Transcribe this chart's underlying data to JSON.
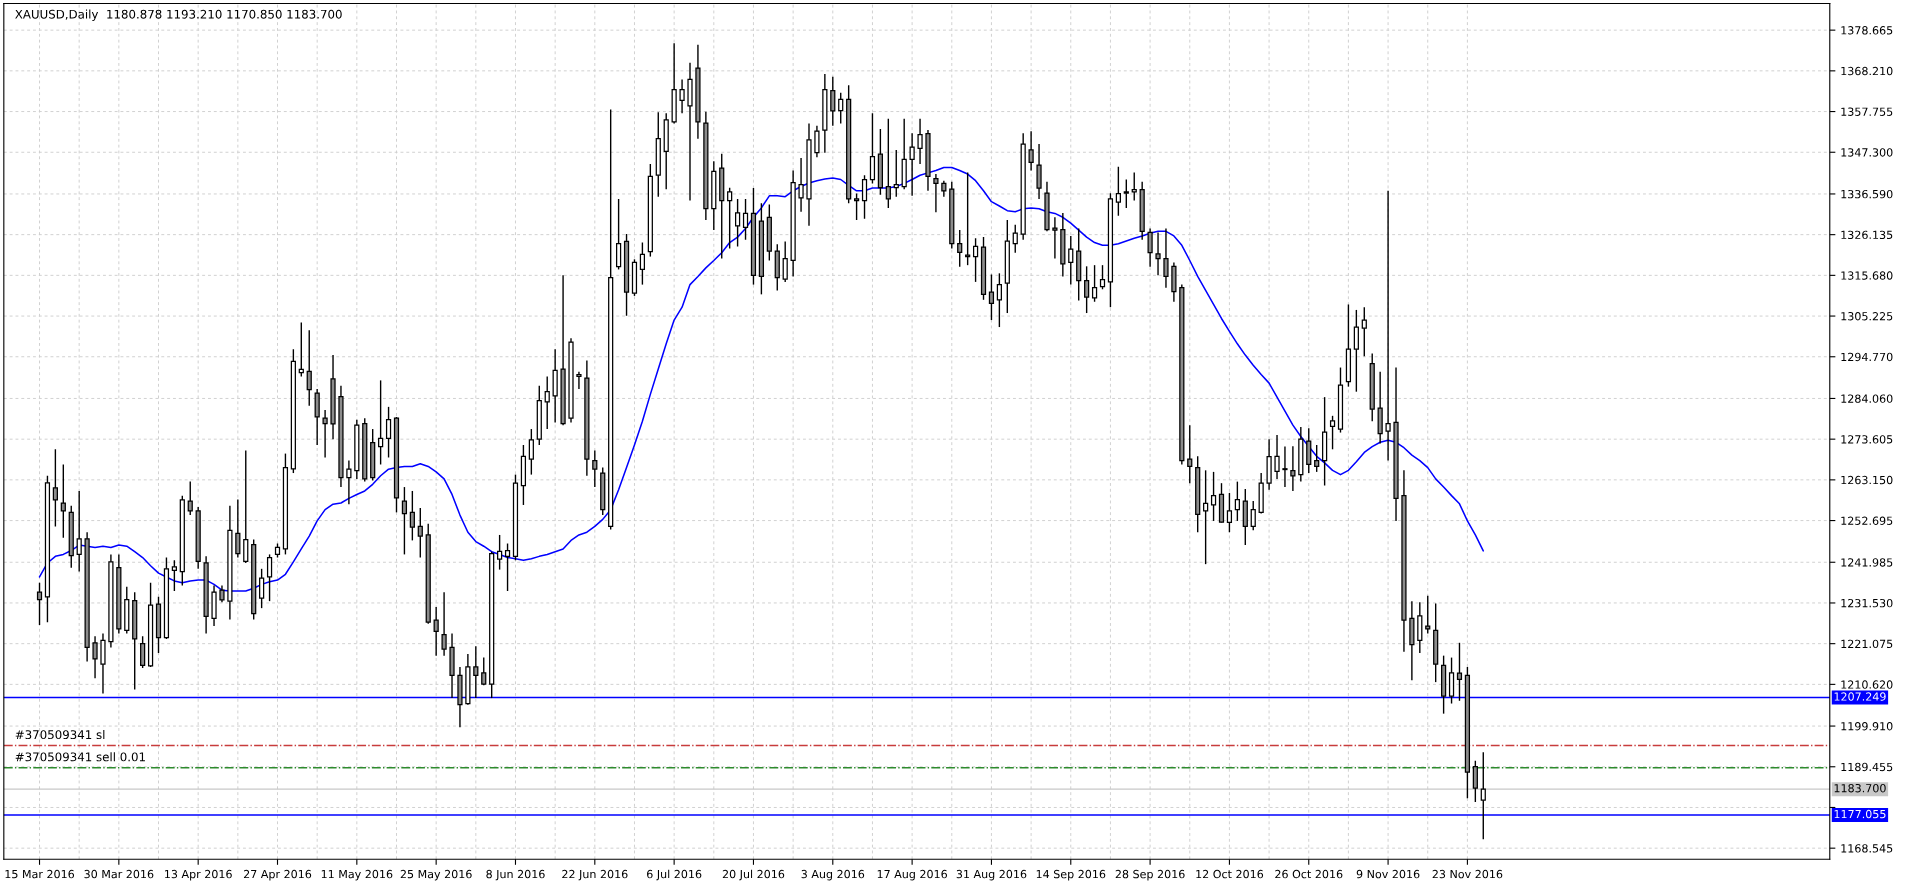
{
  "chart_data": {
    "type": "candlestick",
    "title": "XAUUSD,Daily  1180.878 1193.210 1170.850 1183.700",
    "categories": [
      "15 Mar 2016",
      null,
      null,
      null,
      null,
      null,
      null,
      null,
      null,
      null,
      "30 Mar 2016",
      null,
      null,
      null,
      null,
      null,
      null,
      null,
      null,
      null,
      "13 Apr 2016",
      null,
      null,
      null,
      null,
      null,
      null,
      null,
      null,
      null,
      "27 Apr 2016",
      null,
      null,
      null,
      null,
      null,
      null,
      null,
      null,
      null,
      "11 May 2016",
      null,
      null,
      null,
      null,
      null,
      null,
      null,
      null,
      null,
      "25 May 2016",
      null,
      null,
      null,
      null,
      null,
      null,
      null,
      null,
      null,
      "8 Jun 2016",
      null,
      null,
      null,
      null,
      null,
      null,
      null,
      null,
      null,
      "22 Jun 2016",
      null,
      null,
      null,
      null,
      null,
      null,
      null,
      null,
      null,
      "6 Jul 2016",
      null,
      null,
      null,
      null,
      null,
      null,
      null,
      null,
      null,
      "20 Jul 2016",
      null,
      null,
      null,
      null,
      null,
      null,
      null,
      null,
      null,
      "3 Aug 2016",
      null,
      null,
      null,
      null,
      null,
      null,
      null,
      null,
      null,
      "17 Aug 2016",
      null,
      null,
      null,
      null,
      null,
      null,
      null,
      null,
      null,
      "31 Aug 2016",
      null,
      null,
      null,
      null,
      null,
      null,
      null,
      null,
      null,
      "14 Sep 2016",
      null,
      null,
      null,
      null,
      null,
      null,
      null,
      null,
      null,
      "28 Sep 2016",
      null,
      null,
      null,
      null,
      null,
      null,
      null,
      null,
      null,
      "12 Oct 2016",
      null,
      null,
      null,
      null,
      null,
      null,
      null,
      null,
      null,
      "26 Oct 2016",
      null,
      null,
      null,
      null,
      null,
      null,
      null,
      null,
      null,
      "9 Nov 2016",
      null,
      null,
      null,
      null,
      null,
      null,
      null,
      null,
      null,
      "23 Nov 2016",
      null,
      null
    ],
    "ohlc": [
      [
        1234.3,
        1236.7,
        1225.9,
        1232.4
      ],
      [
        1233.1,
        1264.2,
        1226.6,
        1262.4
      ],
      [
        1261.1,
        1271.0,
        1251.2,
        1258.0
      ],
      [
        1257.2,
        1267.1,
        1248.3,
        1255.2
      ],
      [
        1254.8,
        1256.5,
        1240.6,
        1243.7
      ],
      [
        1244.0,
        1260.3,
        1239.6,
        1248.0
      ],
      [
        1248.0,
        1249.7,
        1216.5,
        1220.1
      ],
      [
        1221.3,
        1223.0,
        1212.2,
        1217.2
      ],
      [
        1215.8,
        1223.7,
        1208.3,
        1221.9
      ],
      [
        1221.6,
        1244.0,
        1220.1,
        1242.1
      ],
      [
        1240.6,
        1244.0,
        1223.7,
        1224.9
      ],
      [
        1224.5,
        1235.7,
        1223.7,
        1232.4
      ],
      [
        1232.1,
        1234.3,
        1209.3,
        1222.3
      ],
      [
        1221.1,
        1223.0,
        1214.8,
        1215.5
      ],
      [
        1215.4,
        1236.7,
        1215.1,
        1231.0
      ],
      [
        1231.2,
        1233.1,
        1218.7,
        1222.6
      ],
      [
        1222.6,
        1243.2,
        1222.3,
        1240.3
      ],
      [
        1239.9,
        1242.5,
        1234.6,
        1240.8
      ],
      [
        1239.6,
        1259.1,
        1236.0,
        1258.0
      ],
      [
        1257.7,
        1262.7,
        1254.1,
        1255.2
      ],
      [
        1255.2,
        1256.2,
        1240.3,
        1242.2
      ],
      [
        1241.8,
        1243.5,
        1223.7,
        1228.1
      ],
      [
        1227.6,
        1236.0,
        1225.6,
        1234.3
      ],
      [
        1234.8,
        1236.0,
        1231.7,
        1232.3
      ],
      [
        1232.0,
        1256.5,
        1227.3,
        1250.2
      ],
      [
        1249.4,
        1258.1,
        1243.2,
        1244.2
      ],
      [
        1242.2,
        1270.7,
        1241.8,
        1247.8
      ],
      [
        1246.5,
        1247.8,
        1227.3,
        1228.8
      ],
      [
        1232.8,
        1240.3,
        1230.2,
        1237.9
      ],
      [
        1238.2,
        1244.0,
        1232.0,
        1243.2
      ],
      [
        1244.0,
        1246.8,
        1243.2,
        1245.8
      ],
      [
        1245.4,
        1269.9,
        1244.0,
        1266.3
      ],
      [
        1266.0,
        1296.7,
        1264.9,
        1293.6
      ],
      [
        1290.7,
        1303.6,
        1289.7,
        1291.5
      ],
      [
        1291.0,
        1301.6,
        1282.2,
        1286.3
      ],
      [
        1285.4,
        1286.5,
        1272.1,
        1279.3
      ],
      [
        1279.0,
        1281.1,
        1268.9,
        1277.6
      ],
      [
        1289.1,
        1295.2,
        1273.6,
        1277.5
      ],
      [
        1284.5,
        1287.3,
        1261.3,
        1263.7
      ],
      [
        1263.7,
        1268.1,
        1256.9,
        1265.9
      ],
      [
        1265.5,
        1278.6,
        1263.4,
        1277.2
      ],
      [
        1277.6,
        1279.0,
        1262.7,
        1263.4
      ],
      [
        1272.7,
        1276.2,
        1263.0,
        1263.7
      ],
      [
        1271.7,
        1288.7,
        1267.1,
        1273.8
      ],
      [
        1273.8,
        1281.9,
        1268.9,
        1278.6
      ],
      [
        1279.0,
        1279.3,
        1254.8,
        1258.5
      ],
      [
        1257.7,
        1261.3,
        1244.0,
        1254.5
      ],
      [
        1254.8,
        1260.3,
        1247.6,
        1251.0
      ],
      [
        1251.2,
        1255.9,
        1243.2,
        1248.7
      ],
      [
        1249.0,
        1251.9,
        1226.2,
        1226.6
      ],
      [
        1227.1,
        1230.5,
        1218.0,
        1224.2
      ],
      [
        1223.4,
        1234.3,
        1218.0,
        1219.7
      ],
      [
        1220.1,
        1223.7,
        1207.1,
        1212.9
      ],
      [
        1212.9,
        1215.1,
        1199.6,
        1205.4
      ],
      [
        1205.7,
        1218.4,
        1205.4,
        1215.1
      ],
      [
        1215.1,
        1220.4,
        1207.1,
        1212.9
      ],
      [
        1213.6,
        1217.5,
        1210.4,
        1210.7
      ],
      [
        1210.7,
        1244.7,
        1207.1,
        1244.2
      ],
      [
        1242.8,
        1249.0,
        1240.1,
        1244.8
      ],
      [
        1243.5,
        1246.8,
        1234.6,
        1245.0
      ],
      [
        1243.5,
        1264.5,
        1242.5,
        1262.3
      ],
      [
        1261.7,
        1272.1,
        1256.7,
        1269.2
      ],
      [
        1268.5,
        1276.2,
        1264.5,
        1273.4
      ],
      [
        1273.6,
        1287.3,
        1272.1,
        1283.5
      ],
      [
        1283.2,
        1289.7,
        1276.2,
        1285.8
      ],
      [
        1284.7,
        1296.7,
        1277.9,
        1291.3
      ],
      [
        1291.6,
        1315.7,
        1277.2,
        1277.6
      ],
      [
        1279.0,
        1299.5,
        1277.9,
        1298.5
      ],
      [
        1289.7,
        1290.9,
        1286.5,
        1290.2
      ],
      [
        1289.3,
        1293.8,
        1264.2,
        1268.5
      ],
      [
        1268.1,
        1270.7,
        1261.3,
        1265.9
      ],
      [
        1264.9,
        1266.3,
        1254.1,
        1255.5
      ],
      [
        1251.2,
        1358.3,
        1250.4,
        1315.1
      ],
      [
        1317.9,
        1335.3,
        1317.2,
        1323.8
      ],
      [
        1324.4,
        1326.3,
        1305.3,
        1311.4
      ],
      [
        1311.1,
        1319.8,
        1310.4,
        1319.0
      ],
      [
        1317.2,
        1324.1,
        1313.3,
        1321.1
      ],
      [
        1321.8,
        1344.3,
        1320.5,
        1341.1
      ],
      [
        1341.4,
        1357.6,
        1335.9,
        1350.8
      ],
      [
        1347.5,
        1357.3,
        1337.8,
        1355.6
      ],
      [
        1355.1,
        1375.3,
        1354.7,
        1363.4
      ],
      [
        1360.6,
        1366.0,
        1357.3,
        1363.4
      ],
      [
        1359.2,
        1370.3,
        1334.9,
        1366.0
      ],
      [
        1368.9,
        1374.9,
        1350.8,
        1355.1
      ],
      [
        1354.8,
        1357.7,
        1329.9,
        1332.8
      ],
      [
        1332.8,
        1345.0,
        1327.3,
        1342.4
      ],
      [
        1343.2,
        1346.9,
        1320.0,
        1334.9
      ],
      [
        1334.9,
        1338.2,
        1322.6,
        1337.1
      ],
      [
        1328.4,
        1335.3,
        1323.1,
        1331.7
      ],
      [
        1328.0,
        1335.3,
        1324.8,
        1331.6
      ],
      [
        1331.6,
        1338.1,
        1313.3,
        1315.7
      ],
      [
        1329.6,
        1334.2,
        1310.8,
        1315.4
      ],
      [
        1330.6,
        1333.9,
        1319.5,
        1321.9
      ],
      [
        1321.9,
        1323.7,
        1311.8,
        1315.1
      ],
      [
        1314.7,
        1324.4,
        1314.0,
        1320.0
      ],
      [
        1319.5,
        1342.6,
        1315.4,
        1339.5
      ],
      [
        1335.6,
        1345.8,
        1332.0,
        1339.0
      ],
      [
        1335.3,
        1354.7,
        1328.4,
        1350.5
      ],
      [
        1347.2,
        1354.1,
        1346.0,
        1352.7
      ],
      [
        1353.0,
        1367.4,
        1347.2,
        1363.4
      ],
      [
        1363.1,
        1366.7,
        1354.1,
        1357.9
      ],
      [
        1358.0,
        1362.6,
        1354.7,
        1360.9
      ],
      [
        1360.9,
        1364.5,
        1334.2,
        1335.3
      ],
      [
        1335.3,
        1336.7,
        1329.9,
        1334.9
      ],
      [
        1334.9,
        1341.4,
        1330.2,
        1340.3
      ],
      [
        1340.3,
        1357.3,
        1339.3,
        1346.2
      ],
      [
        1346.8,
        1353.3,
        1336.4,
        1338.2
      ],
      [
        1338.5,
        1355.9,
        1333.0,
        1335.3
      ],
      [
        1338.2,
        1347.9,
        1335.9,
        1339.0
      ],
      [
        1338.5,
        1355.9,
        1337.8,
        1345.5
      ],
      [
        1345.5,
        1352.2,
        1336.1,
        1348.6
      ],
      [
        1348.3,
        1355.9,
        1344.3,
        1351.8
      ],
      [
        1352.1,
        1353.0,
        1337.4,
        1341.1
      ],
      [
        1340.5,
        1341.7,
        1331.9,
        1339.3
      ],
      [
        1339.3,
        1340.0,
        1335.9,
        1337.4
      ],
      [
        1337.8,
        1339.7,
        1322.6,
        1323.8
      ],
      [
        1323.8,
        1327.3,
        1317.9,
        1321.6
      ],
      [
        1320.9,
        1342.1,
        1318.3,
        1320.5
      ],
      [
        1320.5,
        1325.2,
        1314.0,
        1323.1
      ],
      [
        1322.9,
        1325.5,
        1309.4,
        1310.8
      ],
      [
        1311.4,
        1315.9,
        1304.2,
        1308.5
      ],
      [
        1309.4,
        1316.2,
        1302.4,
        1313.3
      ],
      [
        1313.7,
        1329.9,
        1306.0,
        1324.5
      ],
      [
        1323.8,
        1328.7,
        1321.5,
        1326.5
      ],
      [
        1326.3,
        1352.2,
        1324.8,
        1349.4
      ],
      [
        1347.9,
        1352.7,
        1342.6,
        1344.7
      ],
      [
        1344.0,
        1349.4,
        1335.3,
        1338.1
      ],
      [
        1336.8,
        1339.7,
        1327.0,
        1327.4
      ],
      [
        1327.8,
        1330.6,
        1320.0,
        1327.3
      ],
      [
        1327.4,
        1331.7,
        1315.4,
        1318.6
      ],
      [
        1319.0,
        1325.8,
        1313.3,
        1322.4
      ],
      [
        1321.9,
        1327.7,
        1309.2,
        1314.3
      ],
      [
        1314.3,
        1318.0,
        1306.0,
        1310.1
      ],
      [
        1309.9,
        1318.3,
        1308.9,
        1312.5
      ],
      [
        1312.8,
        1318.3,
        1312.1,
        1314.6
      ],
      [
        1314.0,
        1336.8,
        1307.5,
        1335.3
      ],
      [
        1334.5,
        1343.6,
        1331.0,
        1336.7
      ],
      [
        1336.8,
        1340.3,
        1333.0,
        1337.1
      ],
      [
        1337.1,
        1342.1,
        1334.9,
        1337.7
      ],
      [
        1337.7,
        1339.7,
        1324.8,
        1327.0
      ],
      [
        1326.7,
        1327.7,
        1317.9,
        1321.5
      ],
      [
        1321.2,
        1326.7,
        1315.7,
        1320.0
      ],
      [
        1320.0,
        1327.7,
        1312.5,
        1315.4
      ],
      [
        1318.0,
        1319.0,
        1308.9,
        1311.5
      ],
      [
        1312.5,
        1313.3,
        1267.1,
        1268.1
      ],
      [
        1268.5,
        1277.2,
        1262.3,
        1266.6
      ],
      [
        1266.3,
        1269.2,
        1249.7,
        1254.3
      ],
      [
        1255.2,
        1265.6,
        1241.5,
        1257.1
      ],
      [
        1256.7,
        1265.2,
        1252.6,
        1259.1
      ],
      [
        1259.4,
        1262.3,
        1252.2,
        1252.3
      ],
      [
        1252.2,
        1259.8,
        1249.7,
        1255.2
      ],
      [
        1255.5,
        1262.7,
        1252.6,
        1258.1
      ],
      [
        1257.7,
        1260.8,
        1246.4,
        1251.2
      ],
      [
        1251.2,
        1257.7,
        1250.2,
        1255.5
      ],
      [
        1254.8,
        1264.9,
        1254.5,
        1262.3
      ],
      [
        1262.3,
        1273.6,
        1260.6,
        1269.1
      ],
      [
        1265.3,
        1274.7,
        1263.4,
        1269.2
      ],
      [
        1266.0,
        1271.7,
        1261.3,
        1265.8
      ],
      [
        1265.5,
        1271.8,
        1260.3,
        1264.2
      ],
      [
        1264.5,
        1276.7,
        1262.7,
        1273.6
      ],
      [
        1273.1,
        1276.4,
        1264.9,
        1267.1
      ],
      [
        1268.1,
        1272.1,
        1265.2,
        1266.6
      ],
      [
        1268.1,
        1284.4,
        1261.7,
        1275.4
      ],
      [
        1276.9,
        1279.6,
        1271.0,
        1278.3
      ],
      [
        1276.2,
        1292.0,
        1275.3,
        1287.5
      ],
      [
        1288.4,
        1308.2,
        1287.1,
        1296.7
      ],
      [
        1296.7,
        1306.8,
        1285.8,
        1302.4
      ],
      [
        1302.1,
        1307.5,
        1294.9,
        1304.2
      ],
      [
        1293.0,
        1295.6,
        1278.2,
        1281.3
      ],
      [
        1281.6,
        1290.9,
        1272.5,
        1275.0
      ],
      [
        1275.7,
        1337.4,
        1268.1,
        1277.6
      ],
      [
        1277.9,
        1292.0,
        1252.6,
        1258.4
      ],
      [
        1259.1,
        1265.6,
        1219.0,
        1227.1
      ],
      [
        1227.6,
        1232.0,
        1211.7,
        1220.8
      ],
      [
        1221.9,
        1231.7,
        1218.7,
        1228.2
      ],
      [
        1225.6,
        1233.4,
        1223.7,
        1224.9
      ],
      [
        1224.5,
        1231.4,
        1211.2,
        1215.8
      ],
      [
        1215.5,
        1218.0,
        1203.1,
        1207.6
      ],
      [
        1207.6,
        1217.5,
        1205.7,
        1213.6
      ],
      [
        1213.5,
        1221.3,
        1206.4,
        1211.9
      ],
      [
        1212.9,
        1215.1,
        1181.4,
        1188.1
      ],
      [
        1189.5,
        1191.0,
        1180.4,
        1184.0
      ],
      [
        1180.878,
        1193.21,
        1170.85,
        1183.7
      ]
    ],
    "series": [
      {
        "type": "line",
        "color": "#0000ff",
        "values": [
          1238.2,
          1241.8,
          1243.5,
          1244.0,
          1245.0,
          1246.4,
          1246.1,
          1245.8,
          1246.1,
          1245.8,
          1246.4,
          1246.1,
          1244.7,
          1243.2,
          1241.1,
          1239.2,
          1238.2,
          1237.2,
          1236.7,
          1237.2,
          1237.4,
          1237.4,
          1236.3,
          1234.8,
          1234.6,
          1234.6,
          1234.6,
          1235.3,
          1236.3,
          1237.0,
          1237.4,
          1238.9,
          1242.1,
          1245.4,
          1248.7,
          1252.6,
          1255.5,
          1256.9,
          1257.2,
          1258.4,
          1259.4,
          1260.3,
          1262.0,
          1264.2,
          1265.9,
          1266.3,
          1266.6,
          1266.6,
          1267.3,
          1266.6,
          1265.2,
          1263.4,
          1259.4,
          1254.1,
          1249.7,
          1247.3,
          1246.1,
          1244.7,
          1244.0,
          1243.2,
          1242.9,
          1242.5,
          1242.9,
          1243.5,
          1244.0,
          1244.7,
          1245.4,
          1247.6,
          1249.0,
          1249.7,
          1251.2,
          1253.0,
          1255.5,
          1260.6,
          1266.3,
          1272.1,
          1278.2,
          1285.1,
          1291.6,
          1298.1,
          1304.2,
          1307.5,
          1313.3,
          1315.4,
          1317.6,
          1319.5,
          1321.5,
          1324.1,
          1325.5,
          1327.7,
          1330.6,
          1333.0,
          1336.1,
          1336.1,
          1335.9,
          1337.4,
          1338.5,
          1339.4,
          1340.0,
          1340.4,
          1340.7,
          1340.3,
          1338.8,
          1337.4,
          1337.4,
          1338.1,
          1338.1,
          1338.1,
          1338.5,
          1339.3,
          1340.3,
          1341.4,
          1342.0,
          1342.6,
          1343.4,
          1343.4,
          1342.6,
          1341.7,
          1340.0,
          1337.4,
          1334.6,
          1333.5,
          1332.3,
          1332.0,
          1332.8,
          1333.0,
          1332.8,
          1332.0,
          1331.6,
          1330.6,
          1329.1,
          1327.3,
          1325.5,
          1324.1,
          1323.4,
          1323.4,
          1323.8,
          1324.5,
          1325.2,
          1325.8,
          1326.5,
          1327.0,
          1327.0,
          1325.8,
          1323.4,
          1319.5,
          1315.4,
          1311.8,
          1308.2,
          1304.6,
          1301.3,
          1298.1,
          1295.2,
          1292.6,
          1290.2,
          1288.0,
          1284.4,
          1280.8,
          1277.2,
          1274.3,
          1271.7,
          1269.2,
          1267.5,
          1265.6,
          1264.5,
          1265.6,
          1267.8,
          1270.2,
          1271.7,
          1272.8,
          1273.3,
          1272.8,
          1271.4,
          1269.5,
          1268.1,
          1266.3,
          1263.4,
          1261.3,
          1259.1,
          1257.0,
          1252.6,
          1249.0,
          1244.9
        ]
      }
    ],
    "ylim": [
      1165.7,
      1385.5
    ],
    "yticks": [
      1378.665,
      {
        "value": 1368.21,
        "label": "1368.210"
      },
      1357.755,
      {
        "value": 1347.3,
        "label": "1347.300"
      },
      {
        "value": 1336.59,
        "label": "1336.590"
      },
      1326.135,
      {
        "value": 1315.68,
        "label": "1315.680"
      },
      1305.225,
      {
        "value": 1294.77,
        "label": "1294.770"
      },
      {
        "value": 1284.06,
        "label": "1284.060"
      },
      1273.605,
      {
        "value": 1263.15,
        "label": "1263.150"
      },
      1252.695,
      1241.985,
      {
        "value": 1231.53,
        "label": "1231.530"
      },
      1221.075,
      {
        "value": 1210.62,
        "label": "1210.620"
      },
      {
        "value": 1199.91,
        "label": "1199.910"
      },
      1189.455,
      {
        "value": 1179,
        "label": null
      },
      1168.545
    ],
    "ref_lines": [
      {
        "axis": "y",
        "value": 1207.249,
        "label": "1207.249",
        "color": "#0000ff",
        "line_style": "solid"
      },
      {
        "axis": "y",
        "value": 1194.9,
        "label": "#370509341 sl",
        "color": "#c83c3c",
        "line_style": "dashdot"
      },
      {
        "axis": "y",
        "value": 1189.2,
        "label": "#370509341 sell 0.01",
        "color": "#2e8b2e",
        "line_style": "dashdot"
      },
      {
        "axis": "y",
        "value": 1183.7,
        "label": "1183.700",
        "color": "#c8c8c8",
        "line_style": "solid"
      },
      {
        "axis": "y",
        "value": 1177.055,
        "label": "1177.055",
        "color": "#0000ff",
        "line_style": "solid"
      }
    ],
    "grid": true
  }
}
